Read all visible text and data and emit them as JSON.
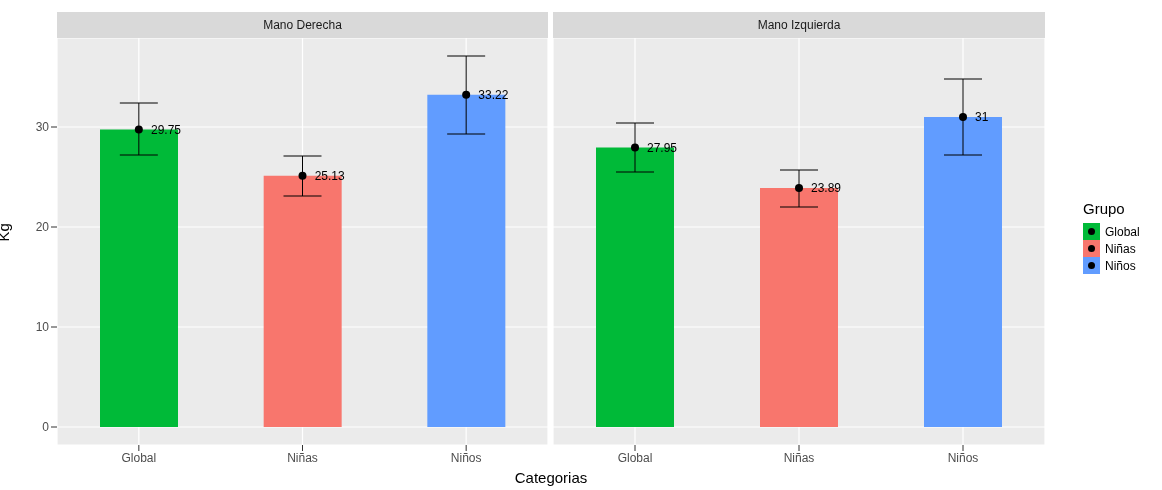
{
  "chart_data": [
    {
      "type": "bar",
      "title": "Mano Derecha",
      "ylabel": "Kg",
      "xlabel": "Categorias",
      "categories": [
        "Global",
        "Niñas",
        "Niños"
      ],
      "ylim": [
        -1.8,
        38.9
      ],
      "yticks": [
        0,
        10,
        20,
        30
      ],
      "grid": true,
      "stacked": true,
      "series": [
        {
          "color": "#00ba38",
          "values": [
            29.75,
            null,
            null
          ],
          "value_labels": [
            "29.75",
            null,
            null
          ]
        },
        {
          "color": "#f8766d",
          "values": [
            null,
            25.13,
            null
          ],
          "value_labels": [
            null,
            "25.13",
            null
          ]
        },
        {
          "color": "#619cff",
          "values": [
            null,
            null,
            33.22
          ],
          "value_labels": [
            null,
            null,
            "33.22"
          ]
        },
        {
          "type": "scatter",
          "x": [
            "Global",
            "Niñas",
            "Niños"
          ],
          "values": [
            29.75,
            25.13,
            33.22
          ],
          "color": "#000000",
          "marker": "circle",
          "errors": [
            [
              27.2,
              32.4
            ],
            [
              23.1,
              27.1
            ],
            [
              29.3,
              37.1
            ]
          ]
        }
      ]
    },
    {
      "type": "bar",
      "title": "Mano Izquierda",
      "categories": [
        "Global",
        "Niñas",
        "Niños"
      ],
      "ylim": [
        -1.8,
        38.9
      ],
      "yticks": [
        0,
        10,
        20,
        30
      ],
      "grid": true,
      "stacked": true,
      "tick_labels": "x",
      "legend": "right",
      "legend_title": "Grupo",
      "series": [
        {
          "name": "Global",
          "color": "#00ba38",
          "values": [
            27.95,
            null,
            null
          ],
          "value_labels": [
            "27.95",
            null,
            null
          ]
        },
        {
          "name": "Niñas",
          "color": "#f8766d",
          "values": [
            null,
            23.89,
            null
          ],
          "value_labels": [
            null,
            "23.89",
            null
          ]
        },
        {
          "name": "Niños",
          "color": "#619cff",
          "values": [
            null,
            null,
            31
          ],
          "value_labels": [
            null,
            null,
            "31"
          ]
        },
        {
          "type": "scatter",
          "x": [
            "Global",
            "Niñas",
            "Niños"
          ],
          "values": [
            27.95,
            23.89,
            31
          ],
          "color": "#000000",
          "marker": "circle",
          "errors": [
            [
              25.5,
              30.4
            ],
            [
              22.0,
              25.7
            ],
            [
              27.2,
              34.8
            ]
          ]
        }
      ]
    }
  ]
}
